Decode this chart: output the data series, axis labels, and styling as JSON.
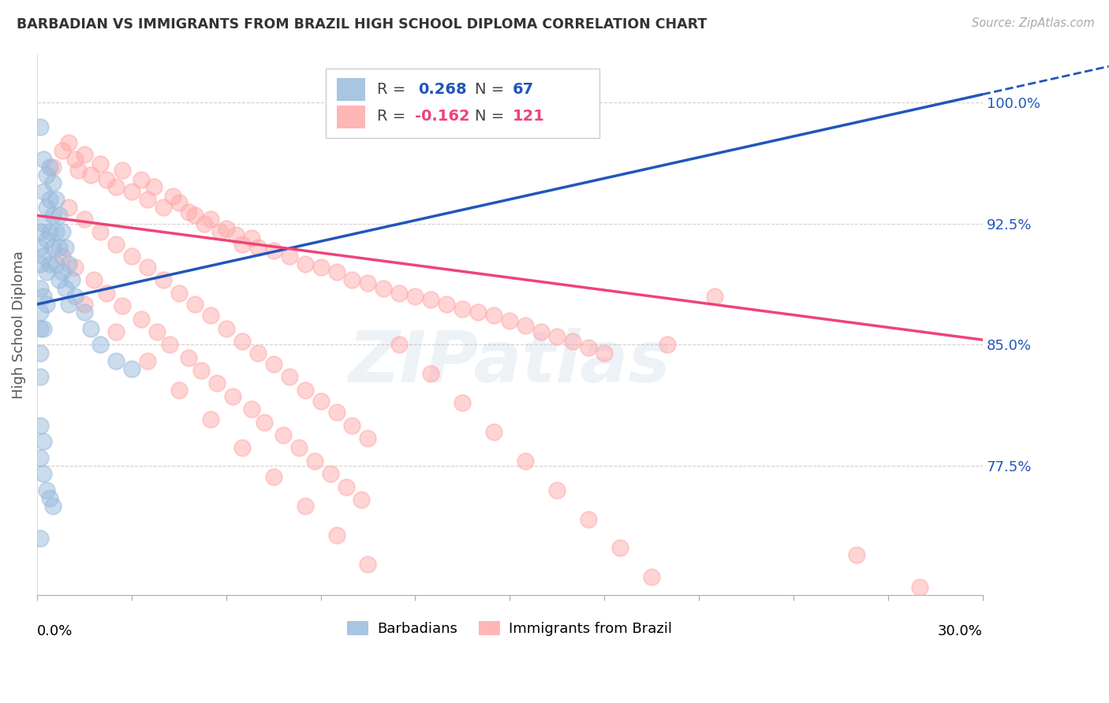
{
  "title": "BARBADIAN VS IMMIGRANTS FROM BRAZIL HIGH SCHOOL DIPLOMA CORRELATION CHART",
  "source": "Source: ZipAtlas.com",
  "ylabel": "High School Diploma",
  "ytick_vals": [
    0.775,
    0.85,
    0.925,
    1.0
  ],
  "ytick_labels": [
    "77.5%",
    "85.0%",
    "92.5%",
    "100.0%"
  ],
  "xmin": 0.0,
  "xmax": 0.3,
  "ymin": 0.695,
  "ymax": 1.03,
  "blue_R": "0.268",
  "blue_N": "67",
  "pink_R": "-0.162",
  "pink_N": "121",
  "blue_color": "#99BBDD",
  "pink_color": "#FFAAAA",
  "blue_line_color": "#2255BB",
  "pink_line_color": "#EE4477",
  "blue_text_color": "#2255BB",
  "pink_text_color": "#EE4477",
  "legend_label_blue": "Barbadians",
  "legend_label_pink": "Immigrants from Brazil",
  "watermark_text": "ZIPatlas",
  "blue_x": [
    0.001,
    0.001,
    0.001,
    0.001,
    0.001,
    0.001,
    0.001,
    0.001,
    0.002,
    0.002,
    0.002,
    0.002,
    0.002,
    0.002,
    0.003,
    0.003,
    0.003,
    0.003,
    0.003,
    0.004,
    0.004,
    0.004,
    0.004,
    0.005,
    0.005,
    0.005,
    0.006,
    0.006,
    0.006,
    0.007,
    0.007,
    0.007,
    0.008,
    0.008,
    0.009,
    0.009,
    0.01,
    0.01,
    0.011,
    0.012,
    0.015,
    0.017,
    0.02,
    0.025,
    0.03,
    0.001,
    0.001,
    0.002,
    0.002,
    0.003,
    0.004,
    0.005,
    0.001,
    0.001
  ],
  "blue_y": [
    0.9,
    0.92,
    0.91,
    0.885,
    0.87,
    0.86,
    0.845,
    0.83,
    0.965,
    0.945,
    0.925,
    0.905,
    0.88,
    0.86,
    0.955,
    0.935,
    0.915,
    0.895,
    0.875,
    0.96,
    0.94,
    0.92,
    0.9,
    0.95,
    0.93,
    0.91,
    0.94,
    0.92,
    0.9,
    0.93,
    0.91,
    0.89,
    0.92,
    0.895,
    0.91,
    0.885,
    0.9,
    0.875,
    0.89,
    0.88,
    0.87,
    0.86,
    0.85,
    0.84,
    0.835,
    0.8,
    0.78,
    0.79,
    0.77,
    0.76,
    0.755,
    0.75,
    0.985,
    0.73
  ],
  "pink_x": [
    0.005,
    0.008,
    0.01,
    0.012,
    0.013,
    0.015,
    0.017,
    0.02,
    0.022,
    0.025,
    0.027,
    0.03,
    0.033,
    0.035,
    0.037,
    0.04,
    0.043,
    0.045,
    0.048,
    0.05,
    0.053,
    0.055,
    0.058,
    0.06,
    0.063,
    0.065,
    0.068,
    0.07,
    0.075,
    0.08,
    0.085,
    0.09,
    0.095,
    0.1,
    0.105,
    0.11,
    0.115,
    0.12,
    0.125,
    0.13,
    0.135,
    0.14,
    0.145,
    0.15,
    0.155,
    0.16,
    0.165,
    0.17,
    0.175,
    0.18,
    0.01,
    0.015,
    0.02,
    0.025,
    0.03,
    0.035,
    0.04,
    0.045,
    0.05,
    0.055,
    0.06,
    0.065,
    0.07,
    0.075,
    0.08,
    0.085,
    0.09,
    0.095,
    0.1,
    0.105,
    0.008,
    0.012,
    0.018,
    0.022,
    0.027,
    0.033,
    0.038,
    0.042,
    0.048,
    0.052,
    0.057,
    0.062,
    0.068,
    0.072,
    0.078,
    0.083,
    0.088,
    0.093,
    0.098,
    0.103,
    0.015,
    0.025,
    0.035,
    0.045,
    0.055,
    0.065,
    0.075,
    0.085,
    0.095,
    0.105,
    0.115,
    0.125,
    0.135,
    0.145,
    0.155,
    0.165,
    0.175,
    0.185,
    0.195,
    0.2,
    0.215,
    0.26,
    0.28
  ],
  "pink_y": [
    0.96,
    0.97,
    0.975,
    0.965,
    0.958,
    0.968,
    0.955,
    0.962,
    0.952,
    0.948,
    0.958,
    0.945,
    0.952,
    0.94,
    0.948,
    0.935,
    0.942,
    0.938,
    0.932,
    0.93,
    0.925,
    0.928,
    0.92,
    0.922,
    0.918,
    0.912,
    0.916,
    0.91,
    0.908,
    0.905,
    0.9,
    0.898,
    0.895,
    0.89,
    0.888,
    0.885,
    0.882,
    0.88,
    0.878,
    0.875,
    0.872,
    0.87,
    0.868,
    0.865,
    0.862,
    0.858,
    0.855,
    0.852,
    0.848,
    0.845,
    0.935,
    0.928,
    0.92,
    0.912,
    0.905,
    0.898,
    0.89,
    0.882,
    0.875,
    0.868,
    0.86,
    0.852,
    0.845,
    0.838,
    0.83,
    0.822,
    0.815,
    0.808,
    0.8,
    0.792,
    0.905,
    0.898,
    0.89,
    0.882,
    0.874,
    0.866,
    0.858,
    0.85,
    0.842,
    0.834,
    0.826,
    0.818,
    0.81,
    0.802,
    0.794,
    0.786,
    0.778,
    0.77,
    0.762,
    0.754,
    0.875,
    0.858,
    0.84,
    0.822,
    0.804,
    0.786,
    0.768,
    0.75,
    0.732,
    0.714,
    0.85,
    0.832,
    0.814,
    0.796,
    0.778,
    0.76,
    0.742,
    0.724,
    0.706,
    0.85,
    0.88,
    0.72,
    0.7
  ]
}
